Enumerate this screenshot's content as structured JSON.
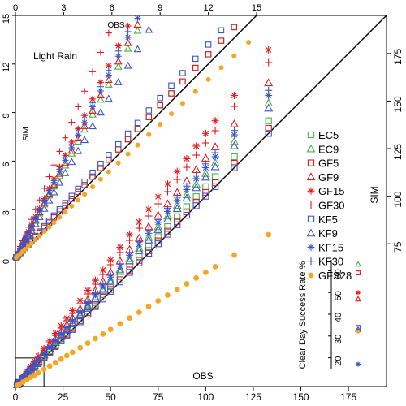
{
  "chart_data": [
    {
      "type": "scatter",
      "panel": "main",
      "xlabel": "OBS",
      "ylabel": "SIM",
      "xlim": [
        0,
        195
      ],
      "ylim": [
        0,
        195
      ],
      "xticks": [
        0,
        25,
        50,
        75,
        100,
        125,
        150,
        175
      ],
      "yticks": [
        75,
        100,
        125,
        150,
        175
      ],
      "grid": false,
      "legend_placement": "right",
      "reference_line": "1:1",
      "colors": {
        "green": "#4daf4a",
        "red": "#e41a1c",
        "blue": "#3a55c8",
        "orange": "#f5a623"
      },
      "series": [
        {
          "name": "EC5",
          "marker": "open-square",
          "color": "#4daf4a",
          "scale": 1.05
        },
        {
          "name": "EC9",
          "marker": "open-triangle",
          "color": "#4daf4a",
          "scale": 1.12
        },
        {
          "name": "GF5",
          "marker": "open-square",
          "color": "#e41a1c",
          "scale": 1.02
        },
        {
          "name": "GF9",
          "marker": "open-triangle",
          "color": "#e41a1c",
          "scale": 1.2
        },
        {
          "name": "GF15",
          "marker": "asterisk",
          "color": "#e41a1c",
          "scale": 1.33
        },
        {
          "name": "GF30",
          "marker": "plus",
          "color": "#e41a1c",
          "scale": 1.28
        },
        {
          "name": "KF5",
          "marker": "open-square",
          "color": "#3a55c8",
          "scale": 1.0
        },
        {
          "name": "KF9",
          "marker": "open-triangle",
          "color": "#3a55c8",
          "scale": 1.1
        },
        {
          "name": "KF15",
          "marker": "asterisk",
          "color": "#3a55c8",
          "scale": 1.15
        },
        {
          "name": "KF30",
          "marker": "plus",
          "color": "#3a55c8",
          "scale": 1.17
        },
        {
          "name": "GFS28",
          "marker": "filled-circle",
          "color": "#f5a623",
          "scale": 0.6
        }
      ],
      "x": [
        1,
        2,
        4,
        6,
        8,
        10,
        12,
        15,
        18,
        21,
        24,
        27,
        30,
        34,
        38,
        42,
        46,
        50,
        55,
        60,
        65,
        70,
        75,
        80,
        85,
        90,
        95,
        100,
        105,
        115,
        133
      ]
    },
    {
      "type": "scatter",
      "panel": "inset",
      "title": "Light Rain",
      "xlabel": "OBS",
      "ylabel": "SIM",
      "xlim": [
        0,
        15
      ],
      "ylim": [
        0,
        15
      ],
      "xticks": [
        0,
        3,
        6,
        9,
        12,
        15
      ],
      "yticks": [
        0,
        3,
        6,
        9,
        12,
        15
      ],
      "reference_line": "1:1",
      "x": [
        0.05,
        0.15,
        0.3,
        0.45,
        0.6,
        0.8,
        1.0,
        1.25,
        1.5,
        1.8,
        2.1,
        2.4,
        2.75,
        3.1,
        3.5,
        3.9,
        4.3,
        4.8,
        5.3,
        5.8,
        6.4,
        7.0,
        7.6,
        8.3,
        9.0,
        9.7,
        10.4,
        11.2,
        12.0,
        12.8,
        13.6,
        14.5
      ],
      "series": [
        {
          "name": "EC5",
          "scale": 1.05
        },
        {
          "name": "EC9",
          "scale": 1.85
        },
        {
          "name": "GF5",
          "scale": 1.05
        },
        {
          "name": "GF9",
          "scale": 1.9
        },
        {
          "name": "GF15",
          "scale": 2.05
        },
        {
          "name": "GF30",
          "scale": 2.4
        },
        {
          "name": "KF5",
          "scale": 1.1
        },
        {
          "name": "KF9",
          "scale": 1.7
        },
        {
          "name": "KF15",
          "scale": 1.95
        },
        {
          "name": "KF30",
          "scale": 2.0
        },
        {
          "name": "GFS28",
          "scale": 0.92
        }
      ]
    },
    {
      "type": "scatter",
      "panel": "clear-day",
      "ylabel": "Clear Day Success Rate %",
      "ylim": [
        15,
        65
      ],
      "yticks": [
        20,
        30,
        40,
        50,
        60
      ],
      "points": [
        {
          "series": "EC9",
          "value": 63
        },
        {
          "series": "GF5",
          "value": 59
        },
        {
          "series": "GF15",
          "value": 50
        },
        {
          "series": "GF9",
          "value": 47
        },
        {
          "series": "KF5",
          "value": 34
        },
        {
          "series": "KF9",
          "value": 33
        },
        {
          "series": "GFS28",
          "value": 32
        },
        {
          "series": "KF15",
          "value": 17
        },
        {
          "series": "KF30",
          "value": 17
        }
      ]
    }
  ]
}
